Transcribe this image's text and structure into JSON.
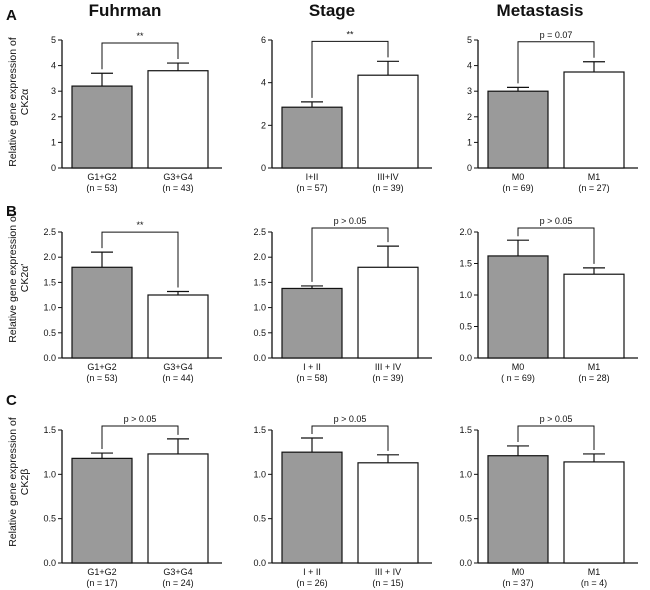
{
  "figure": {
    "column_titles": [
      "Fuhrman",
      "Stage",
      "Metastasis"
    ],
    "row_letters": [
      "A",
      "B",
      "C"
    ],
    "ylabels": [
      [
        "Relative gene expression of",
        "CK2α"
      ],
      [
        "Relative gene expression of",
        "CK2α'"
      ],
      [
        "Relative gene expression of",
        "CK2β"
      ]
    ]
  },
  "colors": {
    "gray_bar": "#9a9a9a",
    "white_bar": "#ffffff",
    "stroke": "#111111"
  },
  "chart_data": [
    {
      "type": "bar",
      "row": 0,
      "col": 0,
      "ylim": [
        0,
        5
      ],
      "yticks": [
        0,
        1,
        2,
        3,
        4,
        5
      ],
      "ytick_labels": [
        "0",
        "1",
        "2",
        "3",
        "4",
        "5"
      ],
      "categories": [
        "G1+G2",
        "G3+G4"
      ],
      "counts": [
        "(n = 53)",
        "(n = 43)"
      ],
      "values": [
        3.2,
        3.8
      ],
      "errors": [
        0.5,
        0.3
      ],
      "significance": "**",
      "bar_fills": [
        "gray",
        "white"
      ]
    },
    {
      "type": "bar",
      "row": 0,
      "col": 1,
      "ylim": [
        0,
        6
      ],
      "yticks": [
        0,
        2,
        4,
        6
      ],
      "ytick_labels": [
        "0",
        "2",
        "4",
        "6"
      ],
      "categories": [
        "I+II",
        "III+IV"
      ],
      "counts": [
        "(n = 57)",
        "(n = 39)"
      ],
      "values": [
        2.85,
        4.35
      ],
      "errors": [
        0.25,
        0.65
      ],
      "significance": "**",
      "bar_fills": [
        "gray",
        "white"
      ]
    },
    {
      "type": "bar",
      "row": 0,
      "col": 2,
      "ylim": [
        0,
        5
      ],
      "yticks": [
        0,
        1,
        2,
        3,
        4,
        5
      ],
      "ytick_labels": [
        "0",
        "1",
        "2",
        "3",
        "4",
        "5"
      ],
      "categories": [
        "M0",
        "M1"
      ],
      "counts": [
        "(n = 69)",
        "(n = 27)"
      ],
      "values": [
        3.0,
        3.75
      ],
      "errors": [
        0.15,
        0.4
      ],
      "significance": "p =  0.07",
      "bar_fills": [
        "gray",
        "white"
      ]
    },
    {
      "type": "bar",
      "row": 1,
      "col": 0,
      "ylim": [
        0,
        2.5
      ],
      "yticks": [
        0,
        0.5,
        1,
        1.5,
        2,
        2.5
      ],
      "ytick_labels": [
        "0.0",
        "0.5",
        "1.0",
        "1.5",
        "2.0",
        "2.5"
      ],
      "categories": [
        "G1+G2",
        "G3+G4"
      ],
      "counts": [
        "(n = 53)",
        "(n = 44)"
      ],
      "values": [
        1.8,
        1.25
      ],
      "errors": [
        0.3,
        0.07
      ],
      "significance": "**",
      "bar_fills": [
        "gray",
        "white"
      ]
    },
    {
      "type": "bar",
      "row": 1,
      "col": 1,
      "ylim": [
        0,
        2.5
      ],
      "yticks": [
        0,
        0.5,
        1,
        1.5,
        2,
        2.5
      ],
      "ytick_labels": [
        "0.0",
        "0.5",
        "1.0",
        "1.5",
        "2.0",
        "2.5"
      ],
      "categories": [
        "I + II",
        "III + IV"
      ],
      "counts": [
        "(n = 58)",
        "(n = 39)"
      ],
      "values": [
        1.38,
        1.8
      ],
      "errors": [
        0.05,
        0.42
      ],
      "significance": "p > 0.05",
      "bar_fills": [
        "gray",
        "white"
      ]
    },
    {
      "type": "bar",
      "row": 1,
      "col": 2,
      "ylim": [
        0,
        2
      ],
      "yticks": [
        0,
        0.5,
        1,
        1.5,
        2
      ],
      "ytick_labels": [
        "0.0",
        "0.5",
        "1.0",
        "1.5",
        "2.0"
      ],
      "categories": [
        "M0",
        "M1"
      ],
      "counts": [
        "( n = 69)",
        "(n = 28)"
      ],
      "values": [
        1.62,
        1.33
      ],
      "errors": [
        0.25,
        0.1
      ],
      "significance": "p > 0.05",
      "bar_fills": [
        "gray",
        "white"
      ]
    },
    {
      "type": "bar",
      "row": 2,
      "col": 0,
      "ylim": [
        0,
        1.5
      ],
      "yticks": [
        0,
        0.5,
        1,
        1.5
      ],
      "ytick_labels": [
        "0.0",
        "0.5",
        "1.0",
        "1.5"
      ],
      "categories": [
        "G1+G2",
        "G3+G4"
      ],
      "counts": [
        "(n = 17)",
        "(n = 24)"
      ],
      "values": [
        1.18,
        1.23
      ],
      "errors": [
        0.06,
        0.17
      ],
      "significance": "p > 0.05",
      "bar_fills": [
        "gray",
        "white"
      ]
    },
    {
      "type": "bar",
      "row": 2,
      "col": 1,
      "ylim": [
        0,
        1.5
      ],
      "yticks": [
        0,
        0.5,
        1,
        1.5
      ],
      "ytick_labels": [
        "0.0",
        "0.5",
        "1.0",
        "1.5"
      ],
      "categories": [
        "I + II",
        "III + IV"
      ],
      "counts": [
        "(n = 26)",
        "(n = 15)"
      ],
      "values": [
        1.25,
        1.13
      ],
      "errors": [
        0.16,
        0.09
      ],
      "significance": "p > 0.05",
      "bar_fills": [
        "gray",
        "white"
      ]
    },
    {
      "type": "bar",
      "row": 2,
      "col": 2,
      "ylim": [
        0,
        1.5
      ],
      "yticks": [
        0,
        0.5,
        1,
        1.5
      ],
      "ytick_labels": [
        "0.0",
        "0.5",
        "1.0",
        "1.5"
      ],
      "categories": [
        "M0",
        "M1"
      ],
      "counts": [
        "(n = 37)",
        "(n = 4)"
      ],
      "values": [
        1.21,
        1.14
      ],
      "errors": [
        0.11,
        0.09
      ],
      "significance": "p > 0.05",
      "bar_fills": [
        "gray",
        "white"
      ]
    }
  ]
}
